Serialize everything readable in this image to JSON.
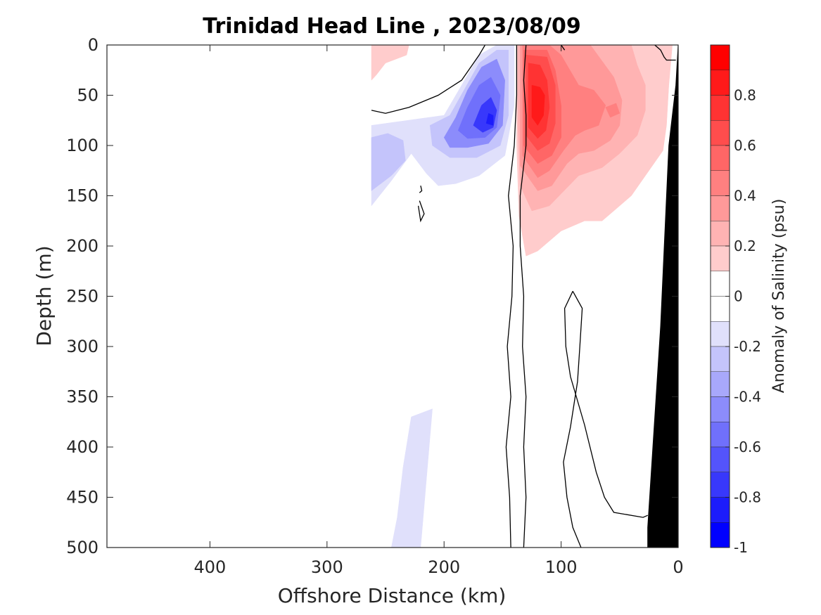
{
  "chart_data": {
    "type": "heatmap",
    "subtype": "filled-contour-section",
    "title": "Trinidad Head Line , 2023/08/09",
    "xlabel": "Offshore Distance (km)",
    "ylabel": "Depth (m)",
    "xlim": [
      488,
      0
    ],
    "ylim": [
      0,
      500
    ],
    "x_reversed": true,
    "y_reversed": true,
    "x_ticks": [
      400,
      300,
      200,
      100,
      0
    ],
    "y_ticks": [
      0,
      50,
      100,
      150,
      200,
      250,
      300,
      350,
      400,
      450,
      500
    ],
    "colorbar": {
      "label": "Anomaly of Salinity (psu)",
      "range": [
        -1,
        1
      ],
      "ticks": [
        {
          "value": 0.8,
          "text": "0.8"
        },
        {
          "value": 0.6,
          "text": "0.6"
        },
        {
          "value": 0.4,
          "text": "0.4"
        },
        {
          "value": 0.2,
          "text": "0.2"
        },
        {
          "value": 0,
          "text": "0"
        },
        {
          "value": -0.2,
          "text": "-0.2"
        },
        {
          "value": -0.4,
          "text": "-0.4"
        },
        {
          "value": -0.6,
          "text": "-0.6"
        },
        {
          "value": -0.8,
          "text": "-0.8"
        },
        {
          "value": -1,
          "text": "-1"
        }
      ],
      "levels": [
        {
          "lo": 0.9,
          "hi": 1.0,
          "color": "#ff0000"
        },
        {
          "lo": 0.8,
          "hi": 0.9,
          "color": "#ff1a1a"
        },
        {
          "lo": 0.7,
          "hi": 0.8,
          "color": "#ff3333"
        },
        {
          "lo": 0.6,
          "hi": 0.7,
          "color": "#ff4d4d"
        },
        {
          "lo": 0.5,
          "hi": 0.6,
          "color": "#ff6666"
        },
        {
          "lo": 0.4,
          "hi": 0.5,
          "color": "#ff8080"
        },
        {
          "lo": 0.3,
          "hi": 0.4,
          "color": "#ff9999"
        },
        {
          "lo": 0.2,
          "hi": 0.3,
          "color": "#ffb3b3"
        },
        {
          "lo": 0.1,
          "hi": 0.2,
          "color": "#ffcccc"
        },
        {
          "lo": 0.0,
          "hi": 0.1,
          "color": "#ffffff"
        },
        {
          "lo": -0.1,
          "hi": 0.0,
          "color": "#ffffff"
        },
        {
          "lo": -0.2,
          "hi": -0.1,
          "color": "#e0e0fb"
        },
        {
          "lo": -0.3,
          "hi": -0.2,
          "color": "#c4c4fb"
        },
        {
          "lo": -0.4,
          "hi": -0.3,
          "color": "#a8a8fb"
        },
        {
          "lo": -0.5,
          "hi": -0.4,
          "color": "#8c8cfb"
        },
        {
          "lo": -0.6,
          "hi": -0.5,
          "color": "#7070fb"
        },
        {
          "lo": -0.7,
          "hi": -0.6,
          "color": "#5454fb"
        },
        {
          "lo": -0.8,
          "hi": -0.7,
          "color": "#3838fb"
        },
        {
          "lo": -0.9,
          "hi": -0.8,
          "color": "#1c1cfb"
        },
        {
          "lo": -1.0,
          "hi": -0.9,
          "color": "#0000ff"
        }
      ]
    },
    "regions": [
      {
        "value": 0.15,
        "points": [
          [
            262,
            0
          ],
          [
            230,
            0
          ],
          [
            232,
            10
          ],
          [
            250,
            18
          ],
          [
            258,
            30
          ],
          [
            262,
            35
          ]
        ]
      },
      {
        "value": -0.15,
        "points": [
          [
            262,
            80
          ],
          [
            200,
            70
          ],
          [
            185,
            40
          ],
          [
            170,
            10
          ],
          [
            155,
            0
          ],
          [
            140,
            0
          ],
          [
            140,
            60
          ],
          [
            148,
            110
          ],
          [
            170,
            130
          ],
          [
            190,
            138
          ],
          [
            205,
            140
          ],
          [
            215,
            128
          ],
          [
            228,
            108
          ],
          [
            245,
            135
          ],
          [
            262,
            160
          ]
        ]
      },
      {
        "value": -0.3,
        "points": [
          [
            262,
            92
          ],
          [
            248,
            88
          ],
          [
            235,
            95
          ],
          [
            233,
            115
          ],
          [
            245,
            130
          ],
          [
            262,
            145
          ]
        ]
      },
      {
        "value": -0.3,
        "points": [
          [
            212,
            80
          ],
          [
            195,
            70
          ],
          [
            183,
            45
          ],
          [
            170,
            18
          ],
          [
            155,
            5
          ],
          [
            145,
            5
          ],
          [
            145,
            70
          ],
          [
            152,
            100
          ],
          [
            172,
            112
          ],
          [
            195,
            112
          ],
          [
            210,
            100
          ]
        ]
      },
      {
        "value": -0.45,
        "points": [
          [
            200,
            92
          ],
          [
            190,
            72
          ],
          [
            180,
            45
          ],
          [
            168,
            22
          ],
          [
            155,
            14
          ],
          [
            148,
            35
          ],
          [
            150,
            80
          ],
          [
            162,
            98
          ],
          [
            180,
            102
          ],
          [
            195,
            102
          ]
        ]
      },
      {
        "value": -0.6,
        "points": [
          [
            188,
            85
          ],
          [
            180,
            62
          ],
          [
            170,
            40
          ],
          [
            160,
            32
          ],
          [
            152,
            50
          ],
          [
            155,
            82
          ],
          [
            165,
            92
          ],
          [
            180,
            93
          ]
        ]
      },
      {
        "value": -0.75,
        "points": [
          [
            175,
            80
          ],
          [
            168,
            60
          ],
          [
            160,
            52
          ],
          [
            155,
            65
          ],
          [
            158,
            82
          ],
          [
            167,
            87
          ]
        ]
      },
      {
        "value": -0.9,
        "points": [
          [
            164,
            78
          ],
          [
            162,
            68
          ],
          [
            158,
            70
          ],
          [
            158,
            80
          ]
        ]
      },
      {
        "value": -0.15,
        "points": [
          [
            220,
            500
          ],
          [
            245,
            500
          ],
          [
            240,
            470
          ],
          [
            235,
            420
          ],
          [
            228,
            370
          ],
          [
            210,
            362
          ]
        ]
      },
      {
        "value": 0.15,
        "points": [
          [
            138,
            0
          ],
          [
            138,
            100
          ],
          [
            136,
            170
          ],
          [
            130,
            210
          ],
          [
            120,
            205
          ],
          [
            100,
            185
          ],
          [
            80,
            175
          ],
          [
            65,
            175
          ],
          [
            55,
            165
          ],
          [
            40,
            150
          ],
          [
            25,
            125
          ],
          [
            13,
            105
          ],
          [
            10,
            80
          ],
          [
            8,
            40
          ],
          [
            5,
            0
          ]
        ]
      },
      {
        "value": 0.25,
        "points": [
          [
            137,
            0
          ],
          [
            137,
            80
          ],
          [
            135,
            140
          ],
          [
            125,
            165
          ],
          [
            110,
            160
          ],
          [
            100,
            148
          ],
          [
            85,
            130
          ],
          [
            65,
            122
          ],
          [
            50,
            108
          ],
          [
            35,
            90
          ],
          [
            28,
            65
          ],
          [
            28,
            40
          ],
          [
            35,
            20
          ],
          [
            40,
            0
          ]
        ]
      },
      {
        "value": 0.35,
        "points": [
          [
            135,
            0
          ],
          [
            135,
            120
          ],
          [
            120,
            145
          ],
          [
            108,
            140
          ],
          [
            95,
            118
          ],
          [
            85,
            108
          ],
          [
            72,
            105
          ],
          [
            58,
            95
          ],
          [
            50,
            80
          ],
          [
            48,
            55
          ],
          [
            55,
            32
          ],
          [
            75,
            0
          ]
        ]
      },
      {
        "value": 0.45,
        "points": [
          [
            133,
            0
          ],
          [
            133,
            110
          ],
          [
            120,
            132
          ],
          [
            110,
            125
          ],
          [
            98,
            105
          ],
          [
            88,
            90
          ],
          [
            80,
            85
          ],
          [
            68,
            80
          ],
          [
            62,
            60
          ],
          [
            72,
            45
          ],
          [
            85,
            40
          ],
          [
            100,
            10
          ],
          [
            110,
            0
          ]
        ]
      },
      {
        "value": 0.55,
        "points": [
          [
            132,
            5
          ],
          [
            132,
            100
          ],
          [
            120,
            118
          ],
          [
            108,
            110
          ],
          [
            100,
            92
          ],
          [
            100,
            60
          ],
          [
            105,
            25
          ],
          [
            112,
            5
          ]
        ]
      },
      {
        "value": 0.45,
        "points": [
          [
            62,
            62
          ],
          [
            58,
            72
          ],
          [
            50,
            68
          ],
          [
            53,
            58
          ]
        ]
      },
      {
        "value": 0.65,
        "points": [
          [
            130,
            10
          ],
          [
            130,
            90
          ],
          [
            120,
            105
          ],
          [
            110,
            98
          ],
          [
            105,
            78
          ],
          [
            105,
            40
          ],
          [
            112,
            12
          ]
        ]
      },
      {
        "value": 0.75,
        "points": [
          [
            128,
            18
          ],
          [
            128,
            82
          ],
          [
            120,
            93
          ],
          [
            113,
            85
          ],
          [
            110,
            62
          ],
          [
            112,
            35
          ],
          [
            118,
            20
          ]
        ]
      },
      {
        "value": 0.85,
        "points": [
          [
            125,
            40
          ],
          [
            125,
            72
          ],
          [
            120,
            80
          ],
          [
            115,
            70
          ],
          [
            114,
            50
          ],
          [
            118,
            42
          ]
        ]
      }
    ],
    "zero_contours": [
      [
        [
          262,
          65
        ],
        [
          250,
          68
        ],
        [
          230,
          62
        ],
        [
          205,
          50
        ],
        [
          185,
          35
        ],
        [
          170,
          10
        ],
        [
          165,
          0
        ]
      ],
      [
        [
          138,
          0
        ],
        [
          138,
          50
        ],
        [
          140,
          100
        ],
        [
          145,
          150
        ],
        [
          141,
          200
        ],
        [
          142,
          250
        ],
        [
          146,
          300
        ],
        [
          143,
          350
        ],
        [
          147,
          400
        ],
        [
          144,
          450
        ],
        [
          143,
          500
        ]
      ],
      [
        [
          130,
          0
        ],
        [
          132,
          35
        ],
        [
          130,
          70
        ],
        [
          130,
          100
        ],
        [
          135,
          150
        ],
        [
          135,
          200
        ],
        [
          132,
          250
        ],
        [
          133,
          300
        ],
        [
          130,
          350
        ],
        [
          132,
          400
        ],
        [
          130,
          450
        ],
        [
          132,
          500
        ]
      ],
      [
        [
          90,
          245
        ],
        [
          82,
          262
        ],
        [
          84,
          300
        ],
        [
          86,
          335
        ],
        [
          92,
          380
        ],
        [
          98,
          415
        ],
        [
          95,
          450
        ],
        [
          90,
          480
        ],
        [
          83,
          500
        ]
      ],
      [
        [
          90,
          245
        ],
        [
          97,
          262
        ],
        [
          96,
          300
        ],
        [
          92,
          330
        ],
        [
          80,
          378
        ],
        [
          70,
          425
        ],
        [
          63,
          450
        ],
        [
          55,
          465
        ],
        [
          30,
          470
        ],
        [
          26,
          468
        ]
      ],
      [
        [
          220,
          140
        ],
        [
          219,
          145
        ],
        [
          221,
          147
        ]
      ],
      [
        [
          221,
          155
        ],
        [
          217,
          168
        ],
        [
          220,
          175
        ],
        [
          222,
          160
        ]
      ],
      [
        [
          100,
          0
        ],
        [
          97,
          5
        ]
      ],
      [
        [
          20,
          0
        ],
        [
          15,
          5
        ],
        [
          12,
          12
        ],
        [
          10,
          15
        ],
        [
          2,
          15
        ]
      ]
    ],
    "bathymetry": [
      [
        0,
        0
      ],
      [
        0,
        500
      ],
      [
        26,
        500
      ],
      [
        26,
        480
      ],
      [
        15,
        280
      ],
      [
        8,
        100
      ],
      [
        2,
        40
      ],
      [
        0,
        0
      ]
    ]
  }
}
